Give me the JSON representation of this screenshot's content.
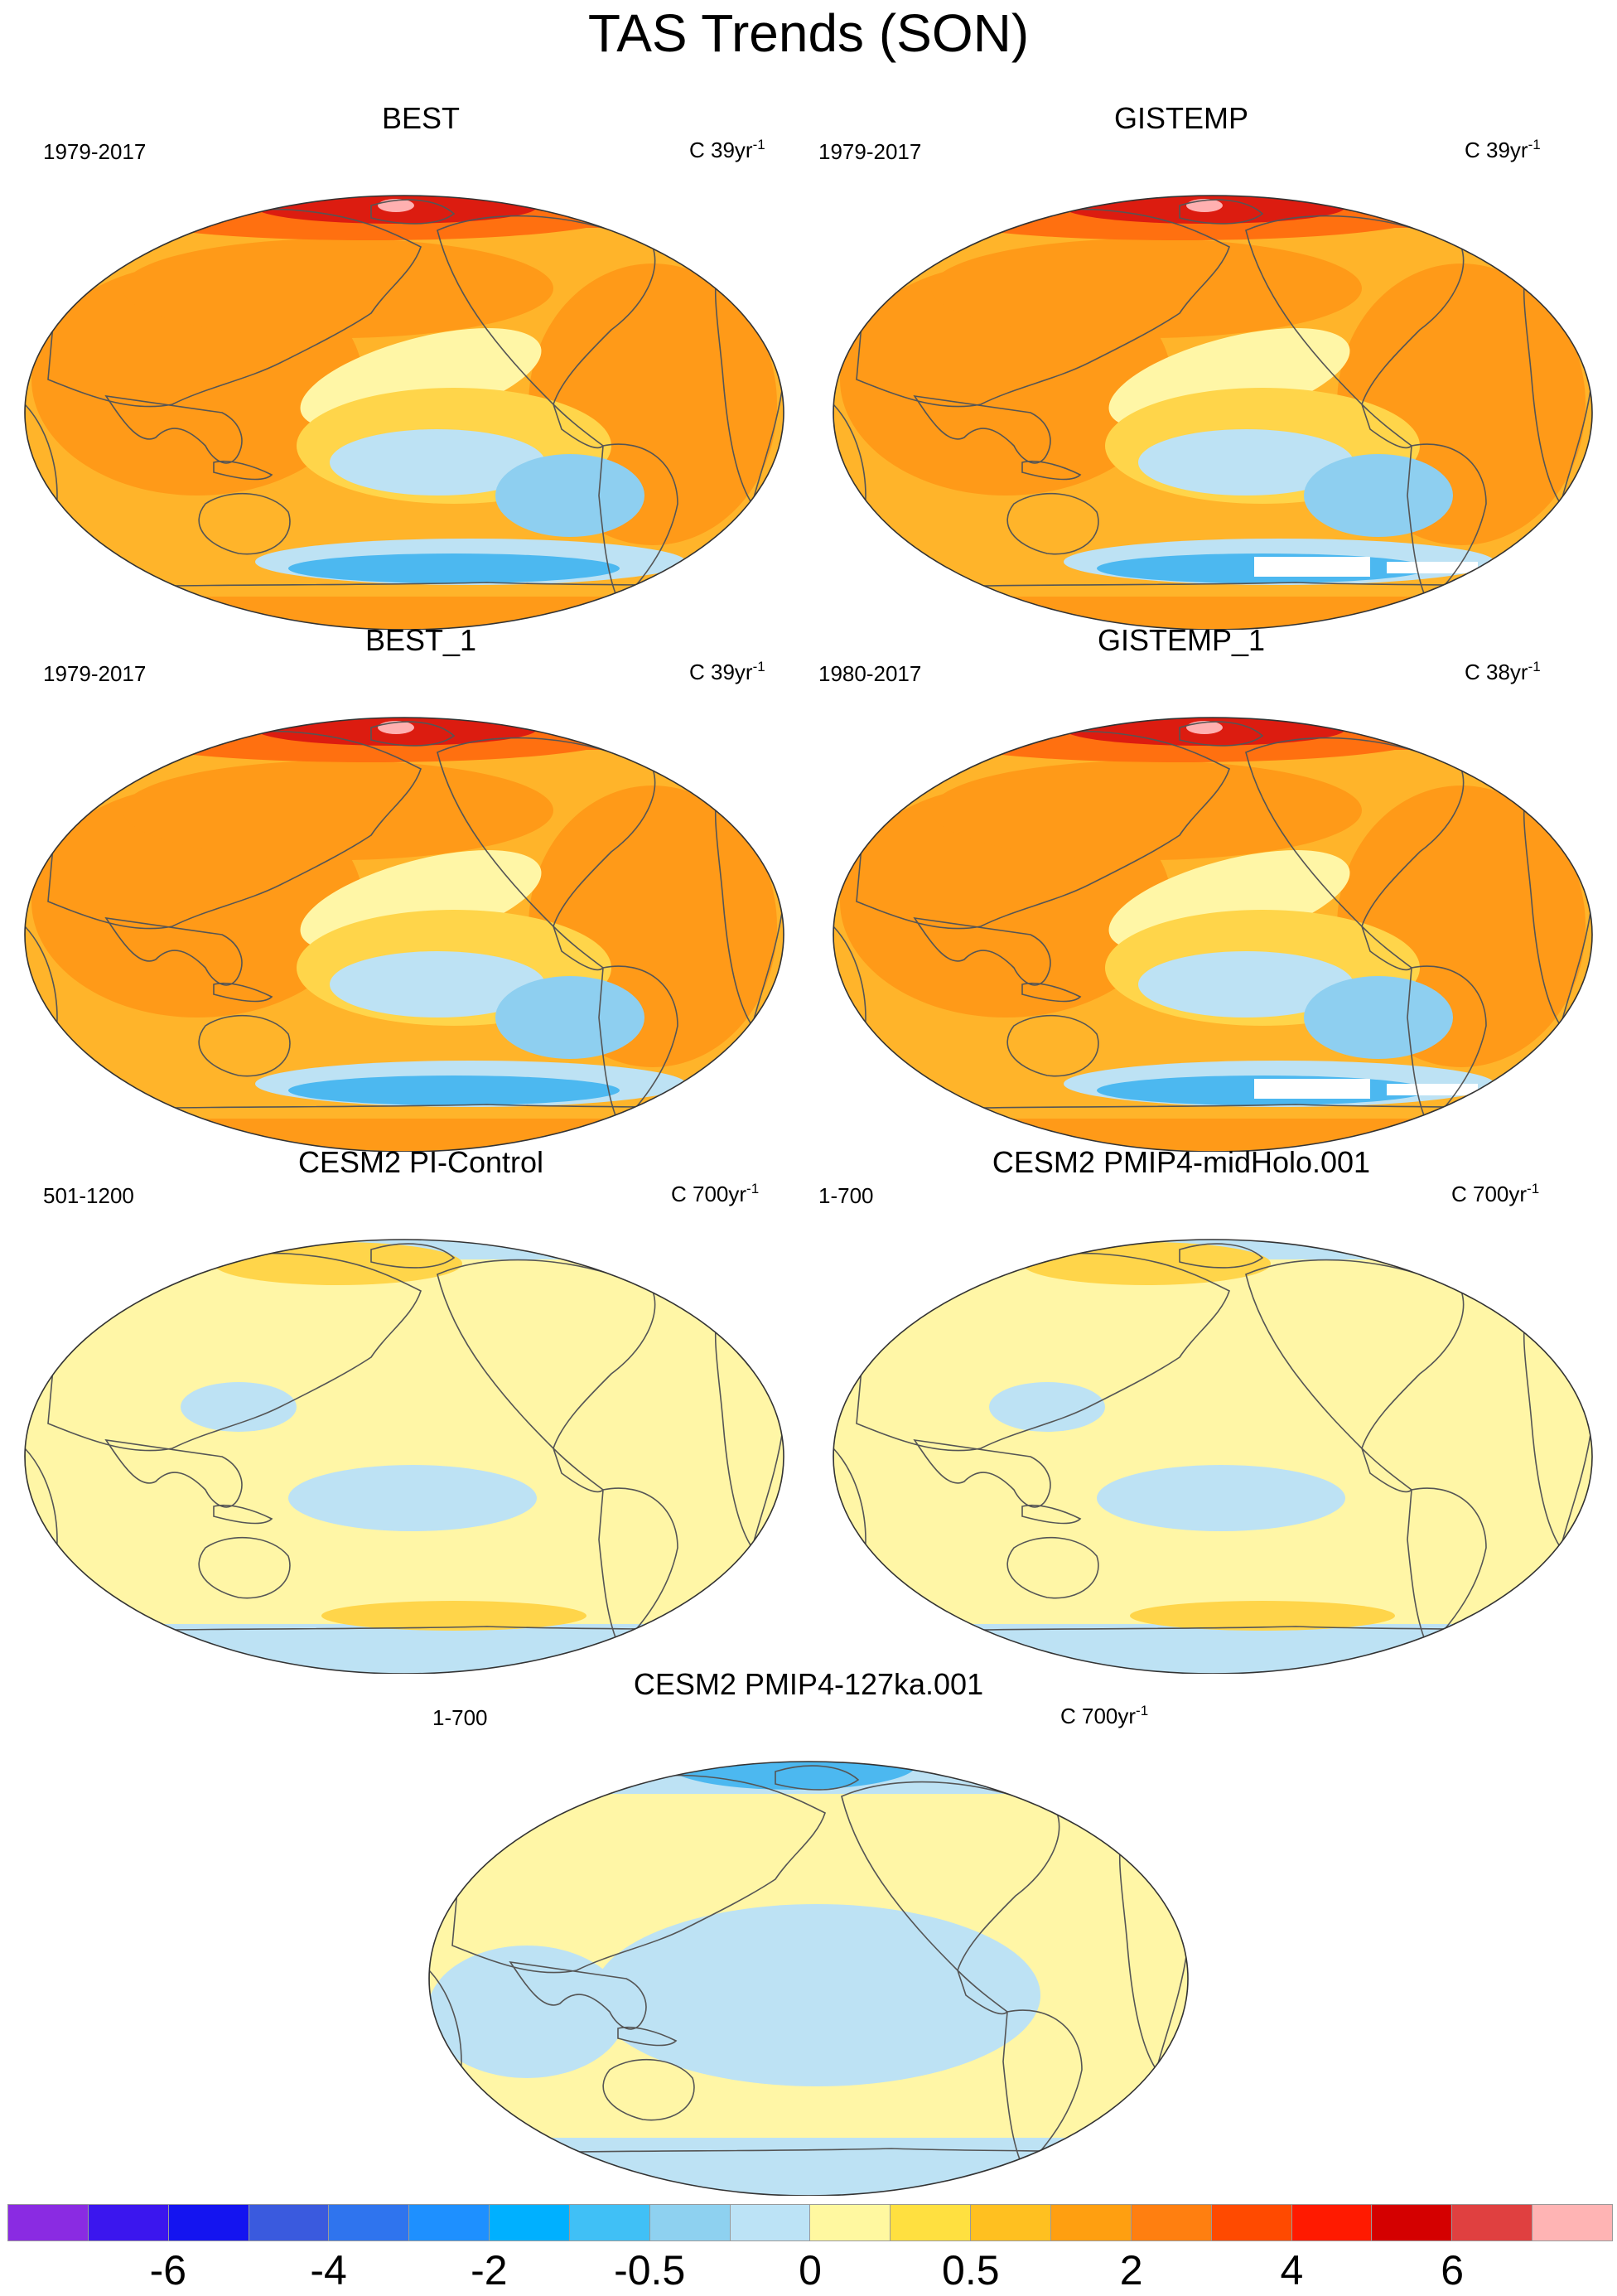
{
  "figure": {
    "title": "TAS Trends (SON)"
  },
  "panels": [
    {
      "title": "BEST",
      "period": "1979-2017",
      "units_prefix": "C 39yr",
      "units_exp": "-1",
      "pattern": "warm",
      "cold_band": true
    },
    {
      "title": "GISTEMP",
      "period": "1979-2017",
      "units_prefix": "C 39yr",
      "units_exp": "-1",
      "pattern": "warm",
      "cold_band": true,
      "missing_data": true
    },
    {
      "title": "BEST_1",
      "period": "1979-2017",
      "units_prefix": "C 39yr",
      "units_exp": "-1",
      "pattern": "warm",
      "cold_band": true
    },
    {
      "title": "GISTEMP_1",
      "period": "1980-2017",
      "units_prefix": "C 38yr",
      "units_exp": "-1",
      "pattern": "warm",
      "cold_band": true,
      "missing_data": true
    },
    {
      "title": "CESM2 PI-Control",
      "period": "501-1200",
      "units_prefix": "C 700yr",
      "units_exp": "-1",
      "pattern": "neutral"
    },
    {
      "title": "CESM2 PMIP4-midHolo.001",
      "period": "1-700",
      "units_prefix": "C 700yr",
      "units_exp": "-1",
      "pattern": "neutral"
    },
    {
      "title": "CESM2 PMIP4-127ka.001",
      "period": "1-700",
      "units_prefix": "C 700yr",
      "units_exp": "-1",
      "pattern": "cool"
    }
  ],
  "colorbar": {
    "colors": [
      "#8a2be2",
      "#3b16ee",
      "#1414f0",
      "#3a5ade",
      "#2f74ee",
      "#1e90ff",
      "#00b0ff",
      "#40c0f6",
      "#8ed1f0",
      "#bce3f6",
      "#fff8a0",
      "#ffe040",
      "#ffc020",
      "#ff9f10",
      "#ff7f10",
      "#ff4a00",
      "#ff1a00",
      "#d40000",
      "#e04040",
      "#ffb4b4"
    ],
    "labels": [
      "-6",
      "-4",
      "-2",
      "-0.5",
      "0",
      "0.5",
      "2",
      "4",
      "6"
    ],
    "label_boundaries": [
      2,
      4,
      6,
      8,
      10,
      12,
      14,
      16,
      18
    ]
  },
  "legend_palette": {
    "ocean_neutral": "#fff6a6",
    "light_warm": "#ffd54a",
    "warm": "#ffb42a",
    "orange": "#ff9a18",
    "deep_orange": "#ff7010",
    "red": "#ff2a00",
    "dark_red": "#dc1c10",
    "pink": "#ffb0b0",
    "light_blue": "#bde2f4",
    "blue": "#8ecff0",
    "mid_blue": "#4cb8f0",
    "coast": "#555555"
  }
}
